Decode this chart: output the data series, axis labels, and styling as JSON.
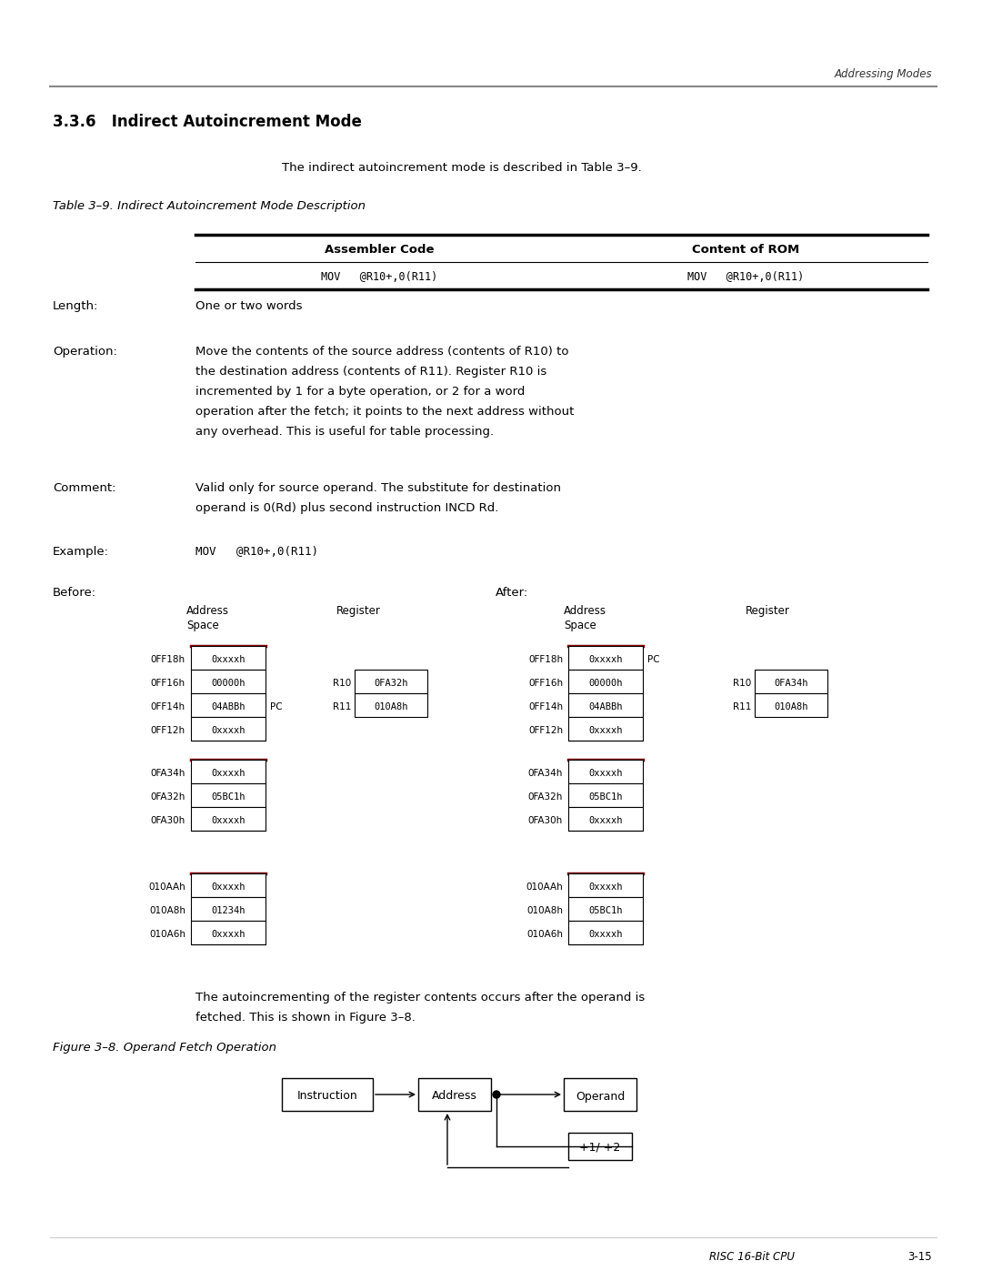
{
  "page_header": "Addressing Modes",
  "section_title": "3.3.6   Indirect Autoincrement Mode",
  "intro_text": "The indirect autoincrement mode is described in Table 3–9.",
  "table_caption": "Table 3–9. Indirect Autoincrement Mode Description",
  "table_col1_header": "Assembler Code",
  "table_col2_header": "Content of ROM",
  "table_row1_col1": "MOV   @R10+,0(R11)",
  "table_row1_col2": "MOV   @R10+,0(R11)",
  "length_label": "Length:",
  "length_value": "One or two words",
  "operation_label": "Operation:",
  "operation_value": "Move the contents of the source address (contents of R10) to\nthe destination address (contents of R11). Register R10 is\nincremented by 1 for a byte operation, or 2 for a word\noperation after the fetch; it points to the next address without\nany overhead. This is useful for table processing.",
  "comment_label": "Comment:",
  "comment_value": "Valid only for source operand. The substitute for destination\noperand is 0(Rd) plus second instruction INCD Rd.",
  "example_label": "Example:",
  "example_value": "MOV   @R10+,0(R11)",
  "before_label": "Before:",
  "after_label": "After:",
  "before_group1": {
    "rows": [
      {
        "addr": "0FF18h",
        "val": "0xxxxh"
      },
      {
        "addr": "0FF16h",
        "val": "00000h"
      },
      {
        "addr": "0FF14h",
        "val": "04ABBh"
      },
      {
        "addr": "0FF12h",
        "val": "0xxxxh"
      }
    ],
    "pc_row": 2,
    "reg_rows": [
      {
        "name": "R10",
        "val": "0FA32h"
      },
      {
        "name": "R11",
        "val": "010A8h"
      }
    ]
  },
  "after_group1": {
    "rows": [
      {
        "addr": "0FF18h",
        "val": "0xxxxh"
      },
      {
        "addr": "0FF16h",
        "val": "00000h"
      },
      {
        "addr": "0FF14h",
        "val": "04ABBh"
      },
      {
        "addr": "0FF12h",
        "val": "0xxxxh"
      }
    ],
    "pc_row": 0,
    "reg_rows": [
      {
        "name": "R10",
        "val": "0FA34h"
      },
      {
        "name": "R11",
        "val": "010A8h"
      }
    ]
  },
  "before_group2": {
    "rows": [
      {
        "addr": "0FA34h",
        "val": "0xxxxh"
      },
      {
        "addr": "0FA32h",
        "val": "05BC1h"
      },
      {
        "addr": "0FA30h",
        "val": "0xxxxh"
      }
    ]
  },
  "after_group2": {
    "rows": [
      {
        "addr": "0FA34h",
        "val": "0xxxxh"
      },
      {
        "addr": "0FA32h",
        "val": "05BC1h"
      },
      {
        "addr": "0FA30h",
        "val": "0xxxxh"
      }
    ]
  },
  "before_group3": {
    "rows": [
      {
        "addr": "010AAh",
        "val": "0xxxxh"
      },
      {
        "addr": "010A8h",
        "val": "01234h"
      },
      {
        "addr": "010A6h",
        "val": "0xxxxh"
      }
    ]
  },
  "after_group3": {
    "rows": [
      {
        "addr": "010AAh",
        "val": "0xxxxh"
      },
      {
        "addr": "010A8h",
        "val": "05BC1h"
      },
      {
        "addr": "010A6h",
        "val": "0xxxxh"
      }
    ]
  },
  "footer_left": "RISC 16-Bit CPU",
  "footer_right": "3-15",
  "fig_caption": "Figure 3–8. Operand Fetch Operation",
  "flow_boxes": [
    "Instruction",
    "Address",
    "Operand"
  ],
  "flow_feedback": "+1/ +2",
  "bg_color": "#ffffff",
  "text_color": "#000000",
  "highlight_border_color": "#8B0000"
}
